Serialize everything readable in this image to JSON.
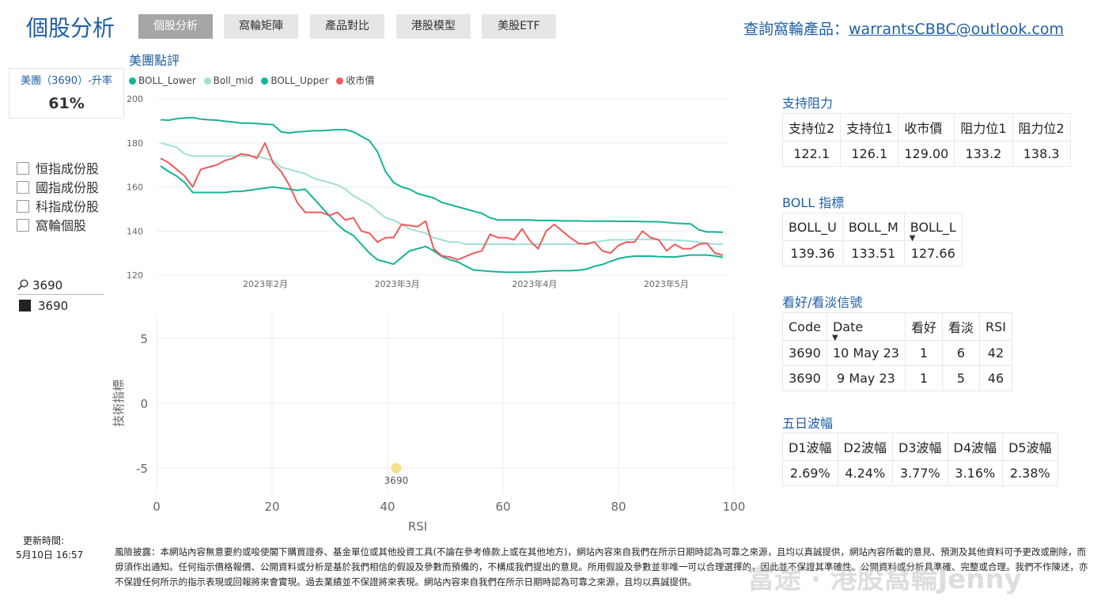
{
  "header": {
    "title": "個股分析",
    "tabs": [
      "個股分析",
      "窩輪矩陣",
      "產品對比",
      "港股模型",
      "美股ETF"
    ],
    "contact_label": "查詢窩輪產品：",
    "contact_email": "warrantsCBBC@outlook.com"
  },
  "card": {
    "label": "美團（3690）-升率",
    "value": "61%"
  },
  "filters": [
    "恒指成份股",
    "國指成份股",
    "科指成份股",
    "窩輪個股"
  ],
  "slicer": {
    "search": "3690",
    "item": "3690"
  },
  "colors": {
    "accent": "#1f5fa6",
    "boll_lower": "#14b497",
    "boll_mid": "#9fe0d6",
    "boll_upper": "#14b497",
    "close": "#ef5b5b",
    "bubble": "#f6e08e"
  },
  "chart_data": [
    {
      "type": "line",
      "title": "美團點評",
      "legend": [
        "BOLL_Lower",
        "Boll_mid",
        "BOLL_Upper",
        "收市價"
      ],
      "x_ticks": [
        "2023年2月",
        "2023年3月",
        "2023年4月",
        "2023年5月"
      ],
      "y_ticks": [
        "120",
        "140",
        "160",
        "180",
        "200"
      ],
      "ylim": [
        120,
        200
      ],
      "series": [
        {
          "name": "BOLL_Upper",
          "values": [
            190.5,
            190.3,
            191,
            191.3,
            191.5,
            190.8,
            190.5,
            190.3,
            189.8,
            189.5,
            189,
            189,
            188.8,
            188.5,
            188.3,
            185,
            184.5,
            185,
            185.2,
            185.5,
            185.5,
            185.8,
            186,
            186,
            185,
            183,
            181,
            176,
            167,
            162,
            160,
            159,
            157,
            156,
            155,
            153,
            152,
            151,
            150,
            149,
            148,
            146,
            145,
            145,
            145,
            145,
            145,
            144.8,
            144.8,
            144.8,
            144.6,
            144.6,
            144.6,
            144.5,
            144.5,
            144.5,
            144.5,
            144.4,
            144.4,
            144.4,
            144.3,
            144.2,
            144.2,
            143.9,
            143.6,
            143.4,
            143.2,
            140.6,
            139.6,
            139.6,
            139.4
          ]
        },
        {
          "name": "Boll_mid",
          "values": [
            180,
            179,
            178,
            175,
            174,
            174,
            174,
            174,
            174,
            174,
            174,
            174,
            174,
            173,
            172,
            169,
            168,
            167,
            166,
            164,
            163,
            162,
            161,
            159,
            156,
            154,
            152,
            149,
            146,
            145,
            143,
            141,
            140,
            139,
            137,
            136,
            135,
            135,
            134,
            134,
            134,
            134,
            134,
            134,
            134,
            134,
            134,
            134,
            134,
            134,
            134,
            134,
            134,
            134.5,
            135,
            135.5,
            136,
            136,
            136,
            136.2,
            136.2,
            136.2,
            136.1,
            136,
            135.9,
            135.7,
            135.4,
            135,
            134.5,
            134,
            134
          ]
        },
        {
          "name": "BOLL_Lower",
          "values": [
            169.5,
            167,
            165,
            162,
            157.5,
            157.5,
            157.5,
            157.5,
            157.5,
            158,
            158,
            158.5,
            159,
            159.5,
            160,
            159.5,
            159,
            158.5,
            159,
            155,
            151,
            147,
            143,
            140,
            138,
            134,
            130,
            127,
            126,
            125,
            128,
            131,
            132,
            133,
            131,
            128.5,
            127,
            126,
            124,
            122.3,
            122,
            121.7,
            121.5,
            121.3,
            121.3,
            121.3,
            121.4,
            121.6,
            121.8,
            122,
            122,
            122,
            122.2,
            122.7,
            124,
            124.8,
            126.2,
            127.5,
            128.2,
            128.6,
            128.6,
            128.6,
            128.4,
            128.3,
            128.2,
            128.7,
            129.1,
            129.1,
            129.1,
            128.7,
            128
          ]
        },
        {
          "name": "收市價",
          "values": [
            173,
            171,
            168,
            165,
            160,
            168,
            169,
            170,
            172,
            173,
            175,
            174.5,
            173,
            180,
            171,
            167,
            161,
            153,
            148.5,
            148.5,
            148.5,
            147,
            148.5,
            145,
            146,
            140,
            139,
            135,
            137,
            137,
            143,
            142.5,
            142,
            144.5,
            132,
            128.8,
            128.2,
            127,
            128.5,
            130,
            131,
            138.5,
            137,
            137,
            136,
            141,
            135.5,
            132,
            140,
            143,
            140,
            137,
            134.5,
            134,
            135,
            131,
            130,
            133.5,
            135,
            135,
            140,
            137,
            136,
            131,
            134,
            132,
            132,
            134,
            134.5,
            130,
            129
          ]
        }
      ]
    },
    {
      "type": "scatter",
      "xlabel": "RSI",
      "ylabel": "技術指標",
      "xlim": [
        0,
        100
      ],
      "ylim": [
        -7,
        7
      ],
      "x_ticks": [
        "0",
        "20",
        "40",
        "60",
        "80",
        "100"
      ],
      "y_ticks": [
        "5",
        "0",
        "-5"
      ],
      "points": [
        {
          "label": "3690",
          "x": 41.5,
          "y": -5
        }
      ]
    }
  ],
  "support": {
    "title": "支持阻力",
    "headers": [
      "支持位2",
      "支持位1",
      "收市價",
      "阻力位1",
      "阻力位2"
    ],
    "row": [
      "122.1",
      "126.1",
      "129.00",
      "133.2",
      "138.3"
    ]
  },
  "boll": {
    "title": "BOLL 指標",
    "headers": [
      "BOLL_U",
      "BOLL_M",
      "BOLL_L"
    ],
    "row": [
      "139.36",
      "133.51",
      "127.66"
    ]
  },
  "signals": {
    "title": "看好/看淡信號",
    "headers": [
      "Code",
      "Date",
      "看好",
      "看淡",
      "RSI"
    ],
    "rows": [
      [
        "3690",
        "10 May 23",
        "1",
        "6",
        "42"
      ],
      [
        "3690",
        "9 May 23",
        "1",
        "5",
        "46"
      ]
    ]
  },
  "volatility": {
    "title": "五日波幅",
    "headers": [
      "D1波幅",
      "D2波幅",
      "D3波幅",
      "D4波幅",
      "D5波幅"
    ],
    "row": [
      "2.69%",
      "4.24%",
      "3.77%",
      "3.16%",
      "2.38%"
    ]
  },
  "footer": {
    "update_label": "更新時間:",
    "update_time": "5月10日 16:57",
    "disclaimer": "風險披露：本網站內容無意要約或唆使閣下購買證券、基金單位或其他投資工具(不論在參考條款上或在其他地方)，網站內容來自我們在所示日期時認為可靠之來源，且均以真誠提供，網站內容所載的意見、預測及其他資料可予更改或刪除，而毋須作出通知。任何指示價格報價、公開資料或分析是基於我們相信的假設及參數而預備的，不構成我們提出的意見。所用假設及參數並非唯一可以合理選擇的，因此並不保證其準確性、公開資料或分析具準確、完整或合理。我們不作陳述，亦不保證任何所示的指示表現或回報將來會實現。過去業績並不保證將來表現。網站內容來自我們在所示日期時認為可靠之來源，且均以真誠提供。",
    "watermark": "富途 · 港股窩輪Jenny"
  }
}
